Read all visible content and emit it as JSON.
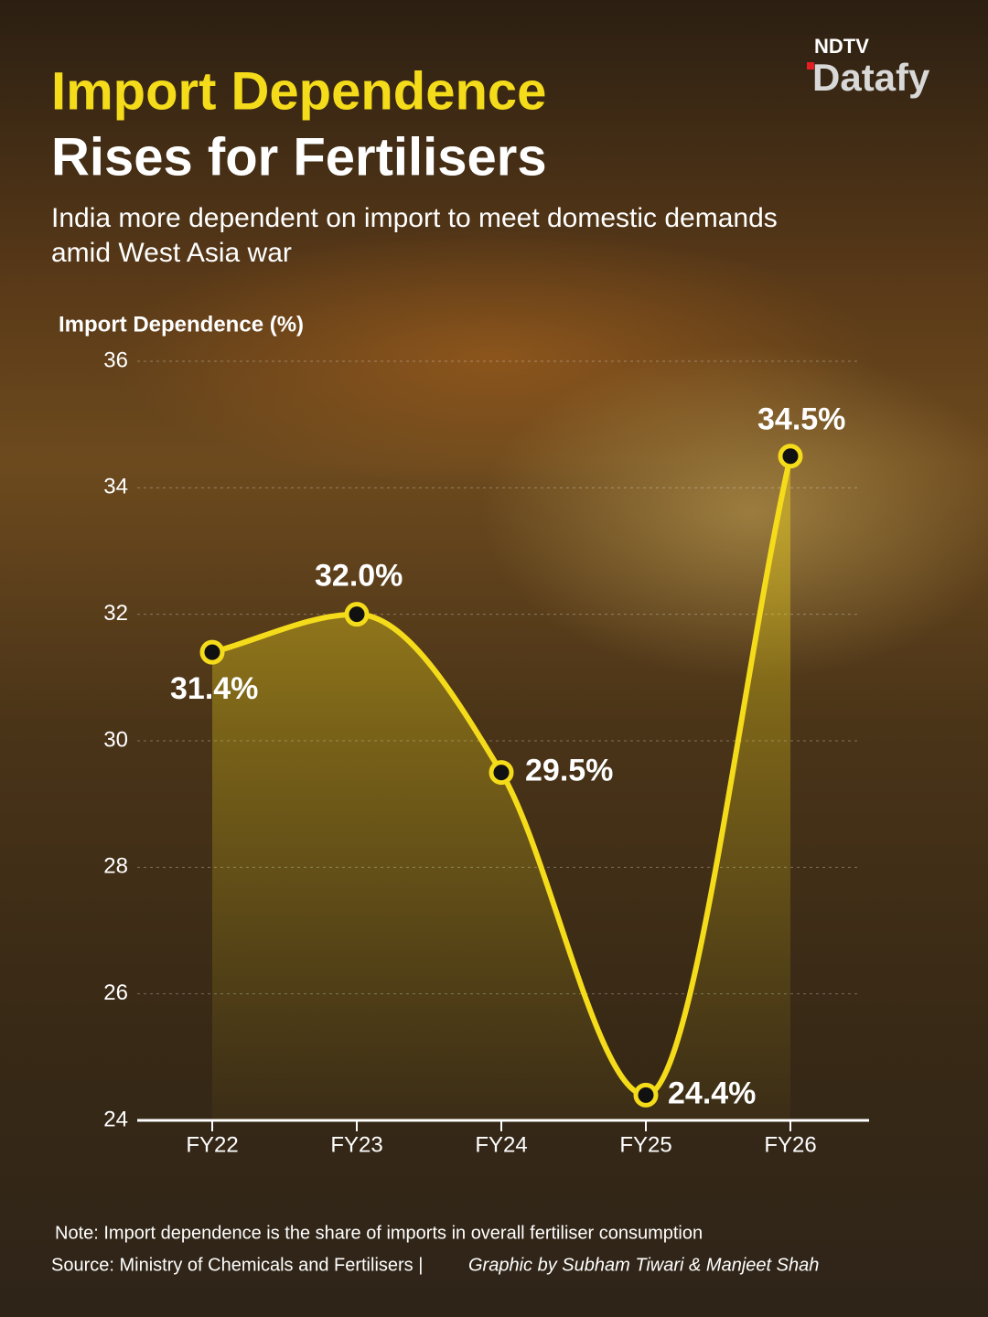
{
  "brand": {
    "top": "NDTV",
    "name": "Datafy"
  },
  "chart_data": {
    "type": "line",
    "title_line1": "Import Dependence",
    "title_line2": "Rises for Fertilisers",
    "subtitle": "India more dependent on import to meet domestic demands amid West Asia war",
    "y_label": "Import Dependence (%)",
    "categories": [
      "FY22",
      "FY23",
      "FY24",
      "FY25",
      "FY26"
    ],
    "values": [
      31.4,
      32.0,
      29.5,
      24.4,
      34.5
    ],
    "value_labels": [
      "31.4%",
      "32.0%",
      "29.5%",
      "24.4%",
      "34.5%"
    ],
    "color": "#f5dc1a",
    "ylim": [
      24,
      36
    ],
    "yticks": [
      24,
      26,
      28,
      30,
      32,
      34,
      36
    ],
    "grid": true
  },
  "footer": {
    "note": "Note: Import dependence is the share of imports in overall fertiliser consumption",
    "source": "Source: Ministry of Chemicals and Fertilisers |",
    "credit": "Graphic by Subham Tiwari & Manjeet Shah"
  }
}
